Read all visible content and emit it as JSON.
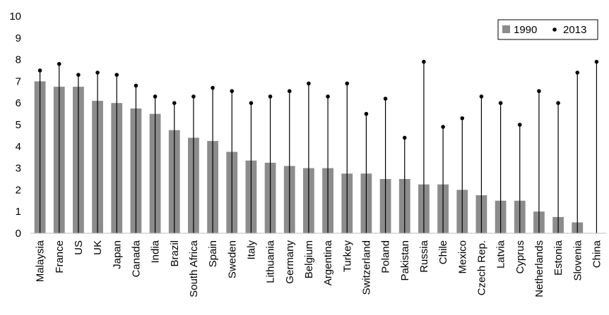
{
  "chart_data": {
    "type": "bar",
    "title": "",
    "xlabel": "",
    "ylabel": "",
    "ylim": [
      0,
      10
    ],
    "yticks": [
      0,
      1,
      2,
      3,
      4,
      5,
      6,
      7,
      8,
      9,
      10
    ],
    "grid": false,
    "legend_position": "top-right",
    "categories": [
      "Malaysia",
      "France",
      "US",
      "UK",
      "Japan",
      "Canada",
      "India",
      "Brazil",
      "South Africa",
      "Spain",
      "Sweden",
      "Italy",
      "Lithuania",
      "Germany",
      "Belgium",
      "Argentina",
      "Turkey",
      "Switzerland",
      "Poland",
      "Pakistan",
      "Russia",
      "Chile",
      "Mexico",
      "Czech Rep.",
      "Latvia",
      "Cyprus",
      "Netherlands",
      "Estonia",
      "Slovenia",
      "China"
    ],
    "series": [
      {
        "name": "1990",
        "mark": "bar",
        "color": "#8c8c8c",
        "values": [
          7.0,
          6.75,
          6.75,
          6.1,
          6.0,
          5.75,
          5.5,
          4.75,
          4.4,
          4.25,
          3.75,
          3.35,
          3.25,
          3.1,
          3.0,
          3.0,
          2.75,
          2.75,
          2.5,
          2.5,
          2.25,
          2.25,
          2.0,
          1.75,
          1.5,
          1.5,
          1.0,
          0.75,
          0.5,
          0.0
        ]
      },
      {
        "name": "2013",
        "mark": "dot-with-stem",
        "color": "#000000",
        "values": [
          7.5,
          7.8,
          7.3,
          7.4,
          7.3,
          6.8,
          6.3,
          6.0,
          6.3,
          6.7,
          6.55,
          6.0,
          6.3,
          6.55,
          6.9,
          6.3,
          6.9,
          5.5,
          6.2,
          4.4,
          7.9,
          4.9,
          5.3,
          6.3,
          6.0,
          5.0,
          6.55,
          6.0,
          7.4,
          7.9
        ]
      }
    ]
  }
}
